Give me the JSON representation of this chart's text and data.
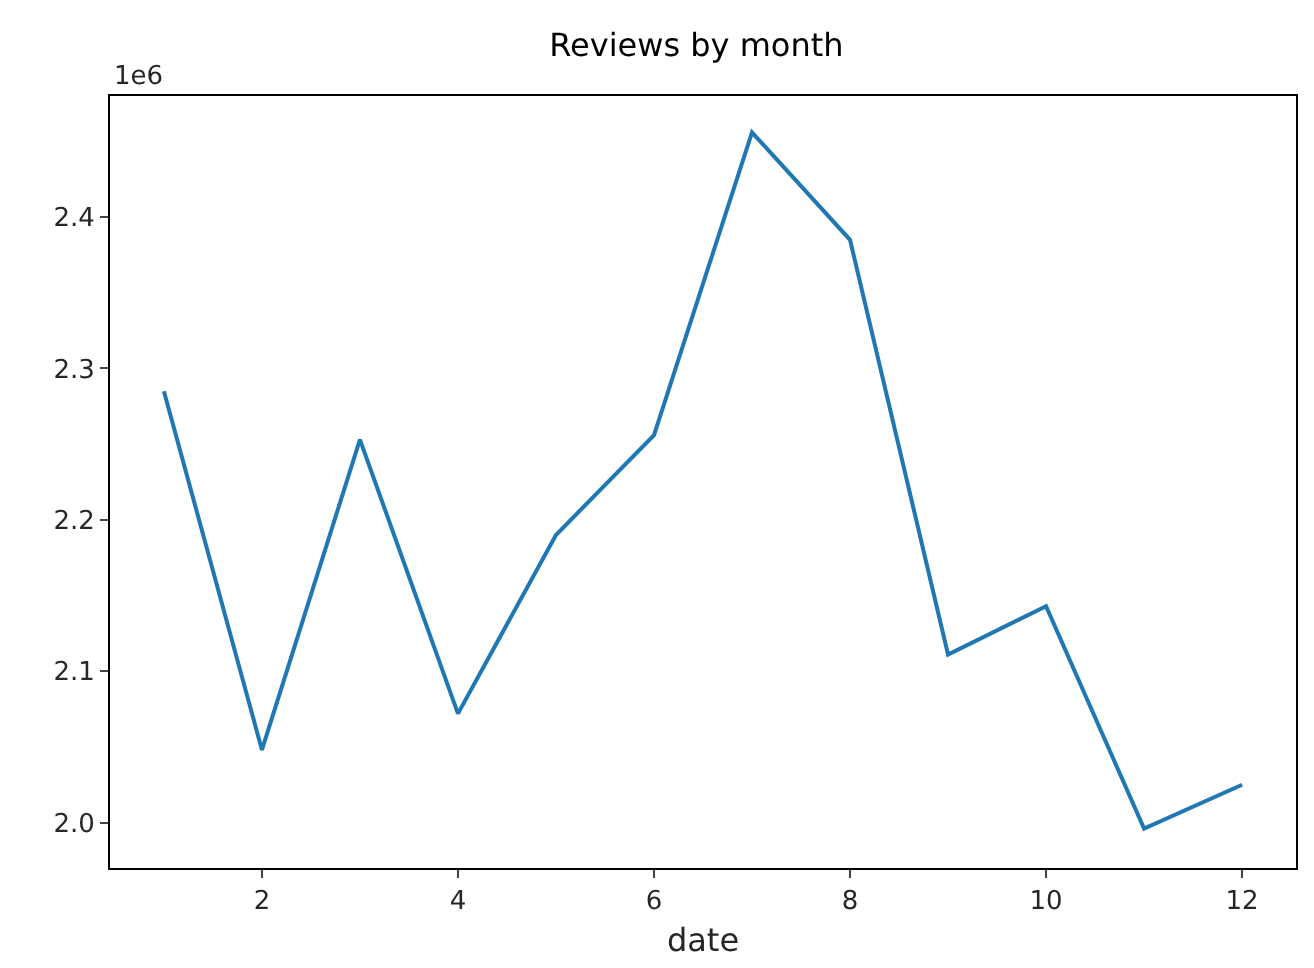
{
  "chart_data": {
    "type": "line",
    "title": "Reviews by month",
    "xlabel": "date",
    "annotations": [
      "1e6"
    ],
    "x": [
      1,
      2,
      3,
      4,
      5,
      6,
      7,
      8,
      9,
      10,
      11,
      12
    ],
    "series": [
      {
        "color": "#1f77b4",
        "values": [
          2.285,
          2.048,
          2.253,
          2.072,
          2.19,
          2.256,
          2.456,
          2.385,
          2.111,
          2.143,
          1.996,
          2.025
        ]
      }
    ],
    "xlim": [
      0.45,
      12.55
    ],
    "xticks": [
      2,
      4,
      6,
      8,
      10,
      12
    ],
    "ylim": [
      1.97,
      2.48
    ],
    "yticks": [
      {
        "value": 2,
        "label": "2.0"
      },
      2.1,
      2.2,
      2.3,
      2.4
    ],
    "grid": false,
    "marker": "none",
    "line_style": "solid"
  }
}
